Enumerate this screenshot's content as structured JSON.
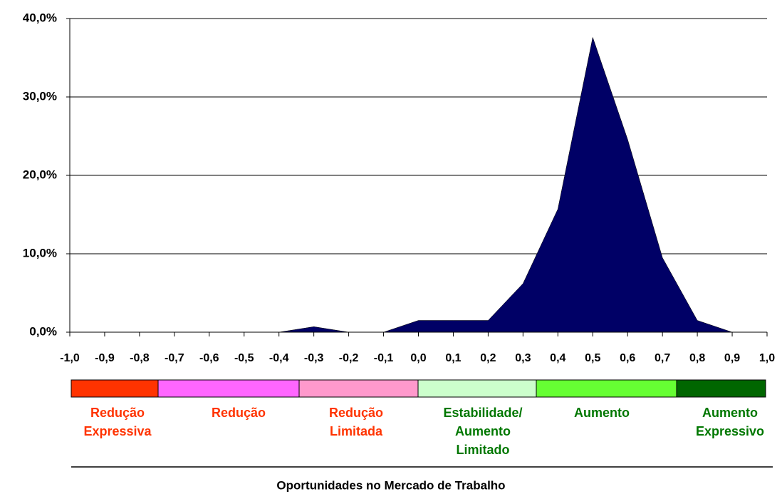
{
  "chart_data": {
    "type": "area",
    "color": "#000066",
    "grid": true,
    "x": [
      -1.0,
      -0.9,
      -0.8,
      -0.7,
      -0.6,
      -0.5,
      -0.4,
      -0.3,
      -0.2,
      -0.1,
      0.0,
      0.1,
      0.2,
      0.3,
      0.4,
      0.5,
      0.6,
      0.7,
      0.8,
      0.9,
      1.0
    ],
    "values": [
      0,
      0,
      0,
      0,
      0,
      0,
      0,
      0.7,
      0,
      0,
      1.5,
      1.5,
      1.5,
      6.2,
      15.7,
      37.6,
      24.6,
      9.5,
      1.5,
      0,
      0
    ],
    "xlim": [
      -1.0,
      1.0
    ],
    "xticks": [
      {
        "value": -1.0,
        "label": "-1,0"
      },
      {
        "value": -0.9,
        "label": "-0,9"
      },
      {
        "value": -0.8,
        "label": "-0,8"
      },
      {
        "value": -0.7,
        "label": "-0,7"
      },
      {
        "value": -0.6,
        "label": "-0,6"
      },
      {
        "value": -0.5,
        "label": "-0,5"
      },
      {
        "value": -0.4,
        "label": "-0,4"
      },
      {
        "value": -0.3,
        "label": "-0,3"
      },
      {
        "value": -0.2,
        "label": "-0,2"
      },
      {
        "value": -0.1,
        "label": "-0,1"
      },
      {
        "value": 0.0,
        "label": "0,0"
      },
      {
        "value": 0.1,
        "label": "0,1"
      },
      {
        "value": 0.2,
        "label": "0,2"
      },
      {
        "value": 0.3,
        "label": "0,3"
      },
      {
        "value": 0.4,
        "label": "0,4"
      },
      {
        "value": 0.5,
        "label": "0,5"
      },
      {
        "value": 0.6,
        "label": "0,6"
      },
      {
        "value": 0.7,
        "label": "0,7"
      },
      {
        "value": 0.8,
        "label": "0,8"
      },
      {
        "value": 0.9,
        "label": "0,9"
      },
      {
        "value": 1.0,
        "label": "1,0"
      }
    ],
    "ylim": [
      0,
      40
    ],
    "yticks": [
      {
        "value": 0,
        "label": "0,0%"
      },
      {
        "value": 10,
        "label": "10,0%"
      },
      {
        "value": 20,
        "label": "20,0%"
      },
      {
        "value": 30,
        "label": "30,0%"
      },
      {
        "value": 40,
        "label": "40,0%"
      }
    ],
    "bands": [
      {
        "name": [
          "Redução",
          "Expressiva"
        ],
        "color": "#ff3300",
        "text_color": "#ff3300"
      },
      {
        "name": [
          "Redução"
        ],
        "color": "#ff66ff",
        "text_color": "#ff3300"
      },
      {
        "name": [
          "Redução",
          "Limitada"
        ],
        "color": "#ff99cc",
        "text_color": "#ff3300"
      },
      {
        "name": [
          "Estabilidade/",
          "Aumento",
          "Limitado"
        ],
        "color": "#ccffcc",
        "text_color": "#007700"
      },
      {
        "name": [
          "Aumento"
        ],
        "color": "#66ff33",
        "text_color": "#007700"
      },
      {
        "name": [
          "Aumento",
          "Expressivo"
        ],
        "color": "#006600",
        "text_color": "#007700"
      }
    ],
    "xlabel": "Oportunidades no Mercado de Trabalho"
  }
}
